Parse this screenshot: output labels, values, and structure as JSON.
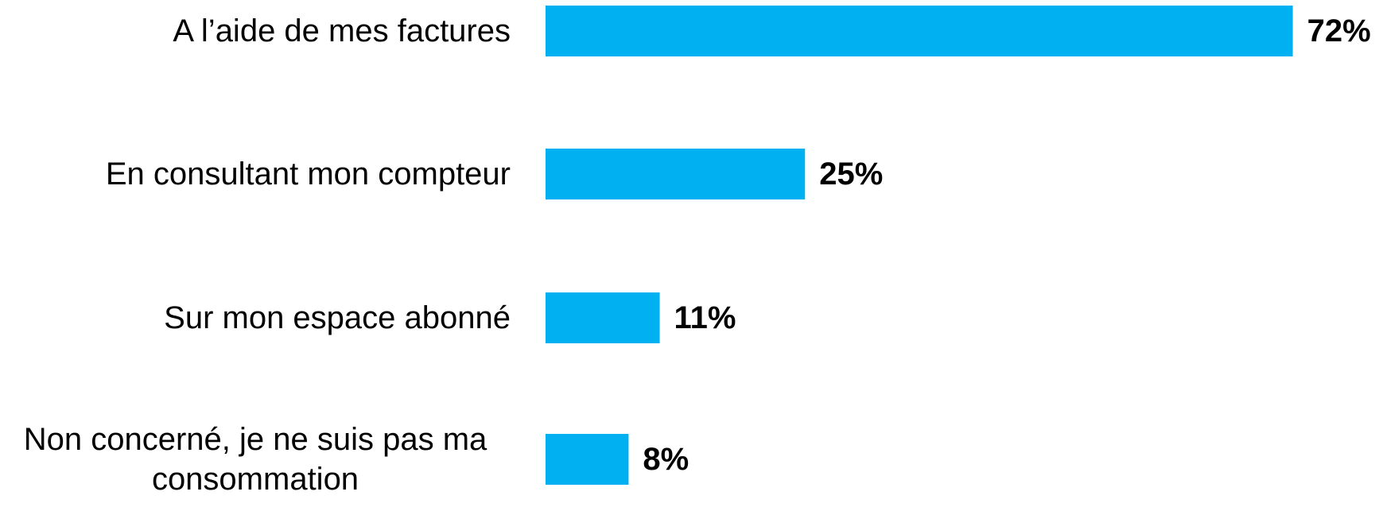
{
  "chart_data": {
    "type": "bar",
    "orientation": "horizontal",
    "categories": [
      "A l’aide de mes factures",
      "En consultant mon compteur",
      "Sur mon espace abonné",
      "Non concerné, je ne suis pas ma consommation"
    ],
    "values": [
      72,
      25,
      11,
      8
    ],
    "value_labels": [
      "72%",
      "25%",
      "11%",
      "8%"
    ],
    "color": "#00b0f0"
  }
}
